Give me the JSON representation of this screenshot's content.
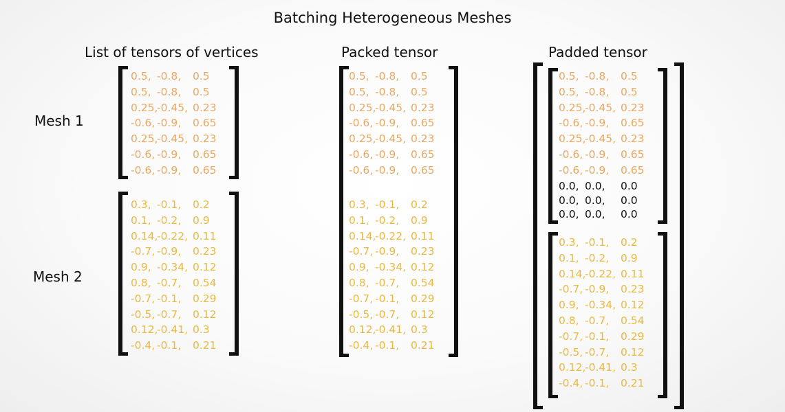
{
  "title": "Batching Heterogeneous Meshes",
  "headings": {
    "list": "List of tensors of vertices",
    "packed": "Packed tensor",
    "padded": "Padded tensor"
  },
  "mesh_labels": [
    "Mesh 1",
    "Mesh 2"
  ],
  "colors": {
    "mesh1": "#e8a862",
    "mesh2": "#e9b941",
    "padding": "#111111"
  },
  "mesh1_rows": [
    [
      "0.5,",
      "-0.8,",
      "0.5"
    ],
    [
      "0.5,",
      "-0.8,",
      "0.5"
    ],
    [
      "0.25,",
      "-0.45,",
      "0.23"
    ],
    [
      "-0.6,",
      "-0.9,",
      "0.65"
    ],
    [
      "0.25,",
      "-0.45,",
      "0.23"
    ],
    [
      "-0.6,",
      "-0.9,",
      "0.65"
    ],
    [
      "-0.6,",
      "-0.9,",
      "0.65"
    ]
  ],
  "mesh2_rows": [
    [
      "0.3,",
      "-0.1,",
      "0.2"
    ],
    [
      "0.1,",
      "-0.2,",
      "0.9"
    ],
    [
      "0.14,",
      "-0.22,",
      "0.11"
    ],
    [
      "-0.7,",
      "-0.9,",
      "0.23"
    ],
    [
      "0.9,",
      "-0.34,",
      "0.12"
    ],
    [
      "0.8,",
      "-0.7,",
      "0.54"
    ],
    [
      "-0.7,",
      "-0.1,",
      "0.29"
    ],
    [
      "-0.5,",
      "-0.7,",
      "0.12"
    ],
    [
      "0.12,",
      "-0.41,",
      "0.3"
    ],
    [
      "-0.4,",
      "-0.1,",
      "0.21"
    ]
  ],
  "padding_rows": [
    [
      "0.0,",
      "0.0,",
      "0.0"
    ],
    [
      "0.0,",
      "0.0,",
      "0.0"
    ],
    [
      "0.0,",
      "0.0,",
      "0.0"
    ]
  ]
}
